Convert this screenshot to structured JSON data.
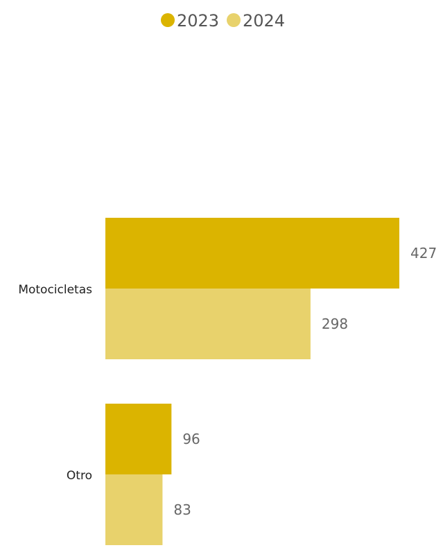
{
  "chart_data": {
    "type": "bar",
    "orientation": "horizontal",
    "title": "",
    "xlabel": "",
    "ylabel": "",
    "categories": [
      "Motocicletas",
      "Otro"
    ],
    "series": [
      {
        "name": "2023",
        "values": [
          427,
          96
        ],
        "color": "#DBB400"
      },
      {
        "name": "2024",
        "values": [
          298,
          83
        ],
        "color": "#E8D26C"
      }
    ],
    "xlim": [
      0,
      427
    ],
    "grid": false,
    "legend_position": "top-center",
    "data_labels": true
  }
}
